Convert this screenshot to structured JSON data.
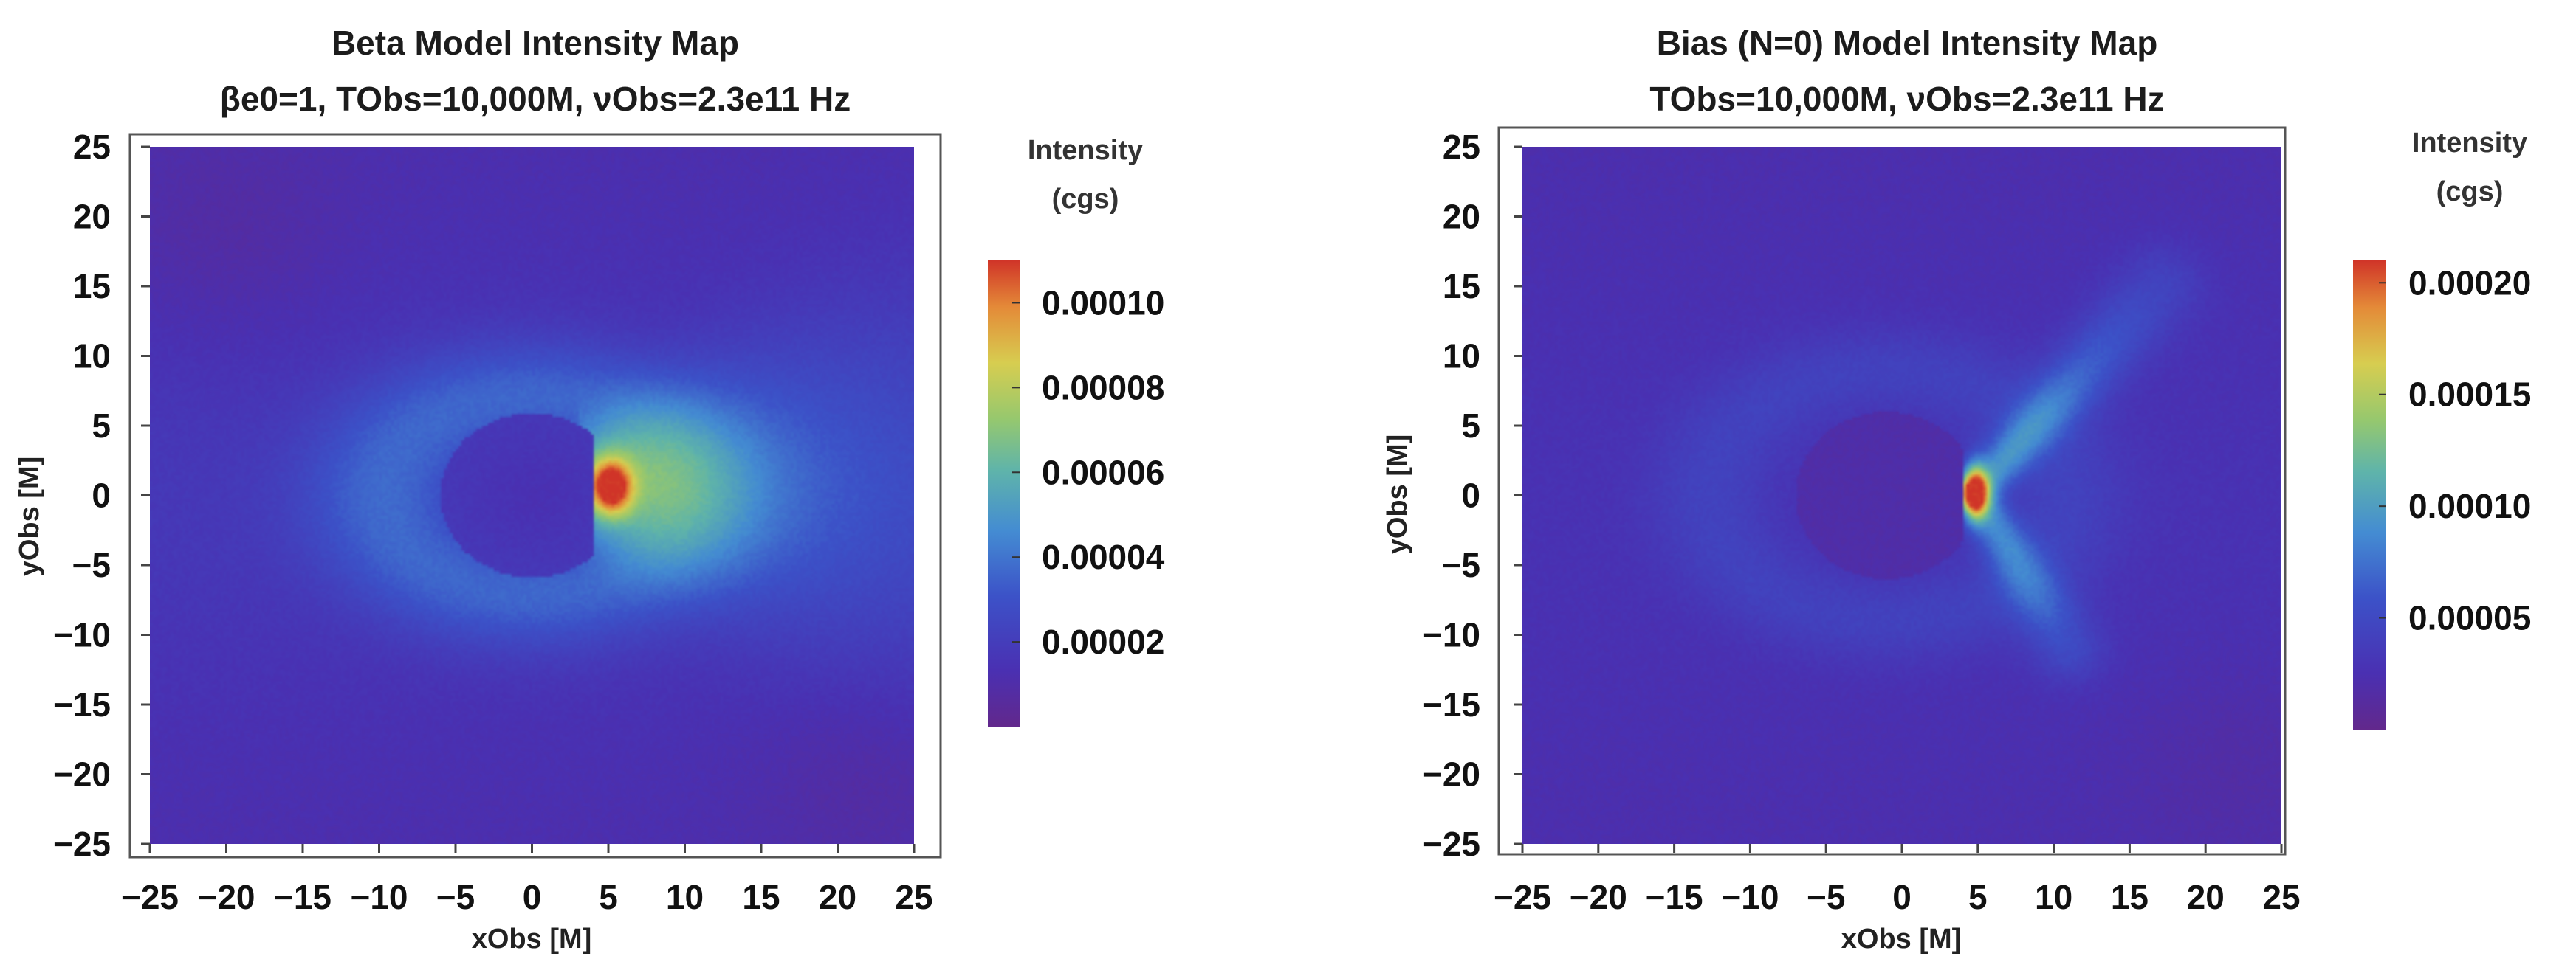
{
  "chart_data": [
    {
      "type": "heatmap",
      "title": "Beta Model Intensity Map",
      "subtitle": "βe0=1, TObs=10,000M, νObs=2.3e11 Hz",
      "xlabel": "xObs [M]",
      "ylabel": "yObs [M]",
      "xlim": [
        -25,
        25
      ],
      "ylim": [
        -25,
        25
      ],
      "xticks": [
        "−25",
        "−20",
        "−15",
        "−10",
        "−5",
        "0",
        "5",
        "10",
        "15",
        "20",
        "25"
      ],
      "yticks": [
        "25",
        "20",
        "15",
        "10",
        "5",
        "0",
        "−5",
        "−10",
        "−15",
        "−20",
        "−25"
      ],
      "colorbar": {
        "title_lines": [
          "Intensity",
          "(cgs)"
        ],
        "min": 0,
        "max": 0.00011,
        "tick_values": [
          2e-05,
          4e-05,
          6e-05,
          8e-05,
          0.0001
        ],
        "tick_labels": [
          "0.00002",
          "0.00004",
          "0.00006",
          "0.00008",
          "0.00010"
        ]
      },
      "features": {
        "shadow_center": [
          0,
          0
        ],
        "shadow_radius": 6,
        "ring_radius": 10,
        "hotspot": [
          5.2,
          0.6
        ],
        "hotspot_peak": 0.00011,
        "background_level": 1.2e-05
      }
    },
    {
      "type": "heatmap",
      "title": "Bias (N=0) Model Intensity Map",
      "subtitle": "TObs=10,000M, νObs=2.3e11 Hz",
      "xlabel": "xObs [M]",
      "ylabel": "yObs [M]",
      "xlim": [
        -25,
        25
      ],
      "ylim": [
        -25,
        25
      ],
      "xticks": [
        "−25",
        "−20",
        "−15",
        "−10",
        "−5",
        "0",
        "5",
        "10",
        "15",
        "20",
        "25"
      ],
      "yticks": [
        "25",
        "20",
        "15",
        "10",
        "5",
        "0",
        "−5",
        "−10",
        "−15",
        "−20",
        "−25"
      ],
      "colorbar": {
        "title_lines": [
          "Intensity",
          "(cgs)"
        ],
        "min": 0,
        "max": 0.00021,
        "tick_values": [
          5e-05,
          0.0001,
          0.00015,
          0.0002
        ],
        "tick_labels": [
          "0.00005",
          "0.00010",
          "0.00015",
          "0.00020"
        ]
      },
      "features": {
        "shadow_center": [
          -1,
          0
        ],
        "shadow_radius": 6,
        "ring_radius": 9,
        "hotspot": [
          4.8,
          0.2
        ],
        "hotspot_peak": 0.00021,
        "jet_upper_end": [
          17,
          15
        ],
        "jet_lower_end": [
          11,
          -11
        ],
        "background_level": 1.2e-05
      }
    }
  ]
}
